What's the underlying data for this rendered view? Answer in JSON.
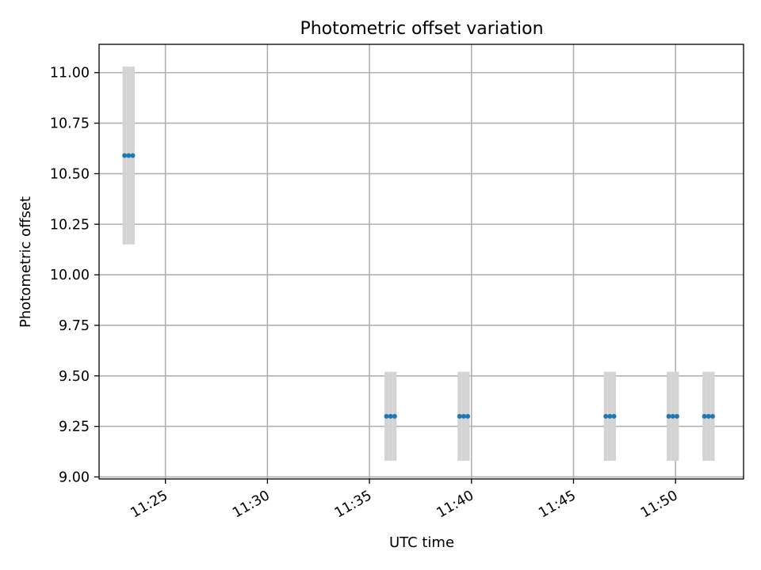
{
  "chart_data": {
    "type": "scatter",
    "title": "Photometric offset variation",
    "xlabel": "UTC time",
    "ylabel": "Photometric offset",
    "x_axis": {
      "kind": "time",
      "range": [
        "11:21:45",
        "11:53:20"
      ],
      "ticks": [
        "11:25",
        "11:30",
        "11:35",
        "11:40",
        "11:45",
        "11:50"
      ],
      "tick_label_rotation": -30
    },
    "y_axis": {
      "range": [
        8.99,
        11.14
      ],
      "ticks": [
        "9.00",
        "9.25",
        "9.50",
        "9.75",
        "10.00",
        "10.25",
        "10.50",
        "10.75",
        "11.00"
      ]
    },
    "grid": true,
    "legend": "none",
    "marker_color": "#1f77b4",
    "errorbar_color": "#d3d3d3",
    "groups": [
      {
        "times": [
          "11:23:00",
          "11:23:12",
          "11:23:24"
        ],
        "value": 10.59,
        "error": 0.44
      },
      {
        "times": [
          "11:35:50",
          "11:36:02",
          "11:36:14"
        ],
        "value": 9.3,
        "error": 0.22
      },
      {
        "times": [
          "11:39:25",
          "11:39:37",
          "11:39:49"
        ],
        "value": 9.3,
        "error": 0.22
      },
      {
        "times": [
          "11:46:35",
          "11:46:47",
          "11:46:59"
        ],
        "value": 9.3,
        "error": 0.22
      },
      {
        "times": [
          "11:49:40",
          "11:49:52",
          "11:50:04"
        ],
        "value": 9.3,
        "error": 0.22
      },
      {
        "times": [
          "11:51:25",
          "11:51:37",
          "11:51:49"
        ],
        "value": 9.3,
        "error": 0.22
      }
    ]
  }
}
